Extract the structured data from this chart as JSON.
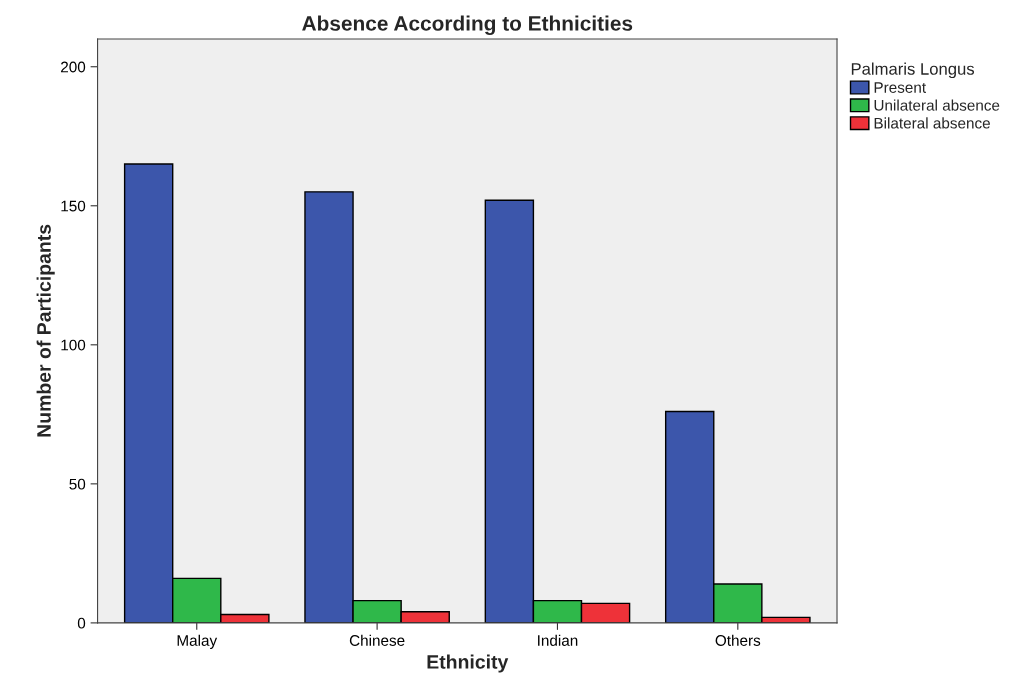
{
  "chart_data": {
    "type": "bar",
    "title": "Absence According to Ethnicities",
    "xlabel": "Ethnicity",
    "ylabel": "Number of Participants",
    "legend_title": "Palmaris Longus",
    "categories": [
      "Malay",
      "Chinese",
      "Indian",
      "Others"
    ],
    "series": [
      {
        "name": "Present",
        "color": "#3c56ab",
        "values": [
          165,
          155,
          152,
          76
        ]
      },
      {
        "name": "Unilateral absence",
        "color": "#2fb84a",
        "values": [
          16,
          8,
          8,
          14
        ]
      },
      {
        "name": "Bilateral absence",
        "color": "#ee3239",
        "values": [
          3,
          4,
          7,
          2
        ]
      }
    ],
    "ylim": [
      0,
      210
    ],
    "yticks": [
      0,
      50,
      100,
      150,
      200
    ],
    "grid": false,
    "legend": "top right"
  }
}
